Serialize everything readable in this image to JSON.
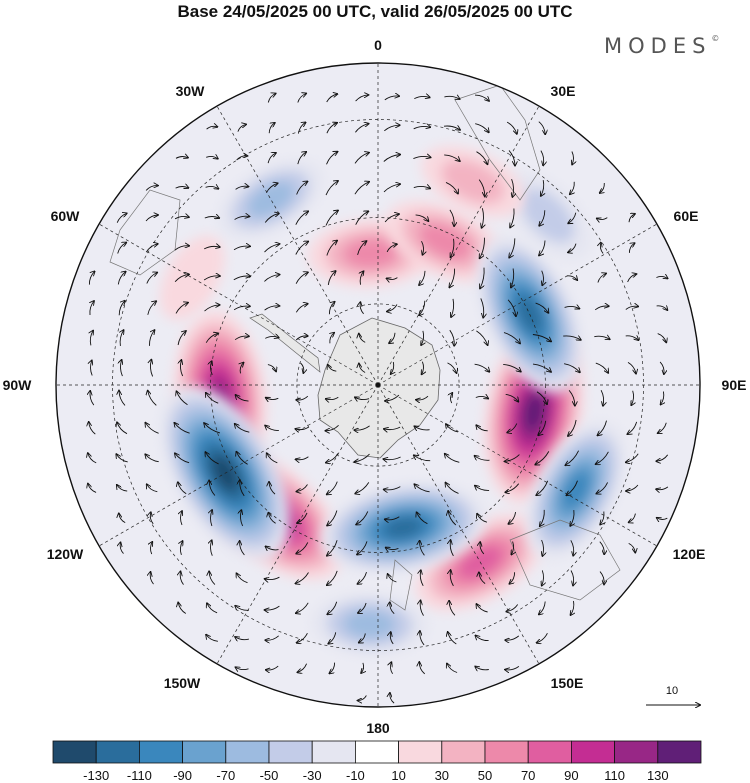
{
  "header": {
    "title": "Base 24/05/2025 00 UTC, valid 26/05/2025 00 UTC",
    "logo": "MODES",
    "logo_mark": "©"
  },
  "map": {
    "projection": "south-polar-stereographic",
    "lon_labels": [
      "0",
      "30E",
      "60E",
      "90E",
      "120E",
      "150E",
      "180",
      "150W",
      "120W",
      "90W",
      "60W",
      "30W"
    ],
    "reference_vector_label": "10",
    "anomalies": [
      {
        "lon": -95,
        "lat": -52,
        "value": 120
      },
      {
        "lon": 100,
        "lat": -52,
        "value": 130
      },
      {
        "lon": -140,
        "lat": -50,
        "value": 120
      },
      {
        "lon": 150,
        "lat": -42,
        "value": 80
      },
      {
        "lon": -3,
        "lat": -58,
        "value": 60
      },
      {
        "lon": 25,
        "lat": -52,
        "value": 60
      },
      {
        "lon": -120,
        "lat": -48,
        "value": -140
      },
      {
        "lon": 65,
        "lat": -50,
        "value": -110
      },
      {
        "lon": 170,
        "lat": -55,
        "value": -110
      },
      {
        "lon": 118,
        "lat": -38,
        "value": -90
      },
      {
        "lon": -30,
        "lat": -40,
        "value": -50
      },
      {
        "lon": 45,
        "lat": -35,
        "value": -40
      },
      {
        "lon": -178,
        "lat": -35,
        "value": -50
      },
      {
        "lon": -60,
        "lat": -40,
        "value": 20
      },
      {
        "lon": 25,
        "lat": -38,
        "value": 40
      }
    ]
  },
  "colorbar": {
    "colors": [
      "#1f4a6c",
      "#2a6d9c",
      "#3a87bd",
      "#6aa2cf",
      "#9dbbe0",
      "#c3cce8",
      "#e5e6f1",
      "#ffffff",
      "#f9d9df",
      "#f3b3c2",
      "#ed89aa",
      "#e05ea0",
      "#c42d93",
      "#982786",
      "#601f77"
    ],
    "tick_labels": [
      "-130",
      "-110",
      "-90",
      "-70",
      "-50",
      "-30",
      "-10",
      "10",
      "30",
      "50",
      "70",
      "90",
      "110",
      "130"
    ]
  }
}
